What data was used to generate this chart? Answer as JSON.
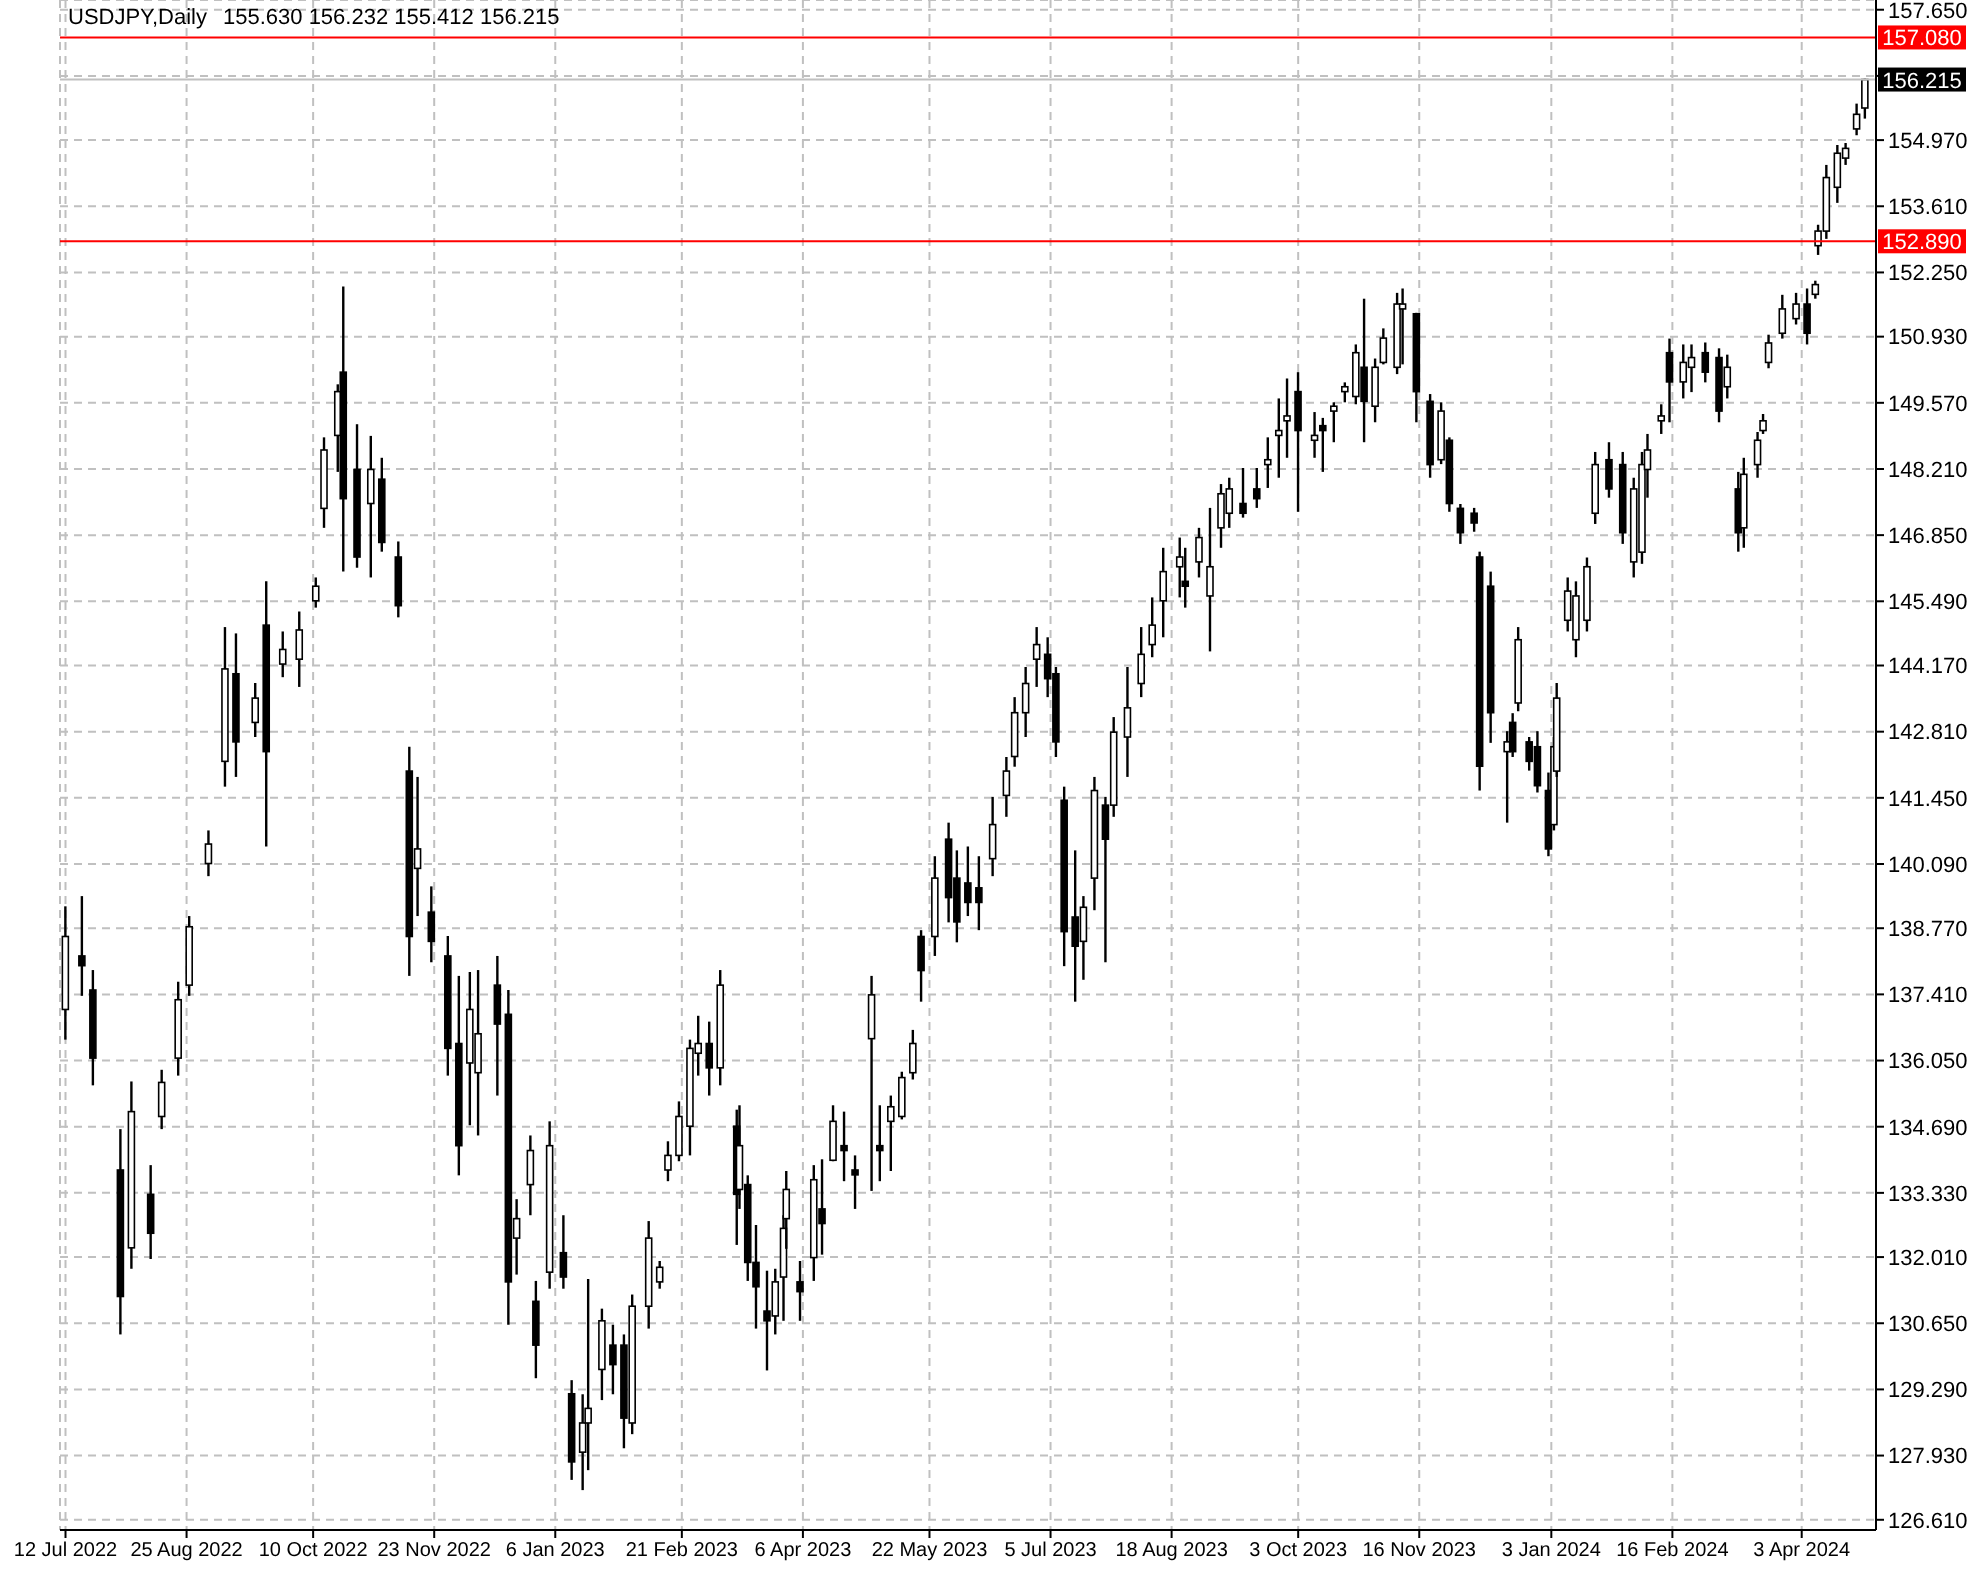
{
  "chart_data": {
    "type": "candlestick",
    "title": "USDJPY,Daily",
    "subtitle": "155.630 156.232 155.412 156.215",
    "color": "#000000",
    "grid": true,
    "xlim": [
      "2022-07-10",
      "2024-04-30"
    ],
    "xticks": [
      {
        "value": "2022-07-12",
        "label": "12 Jul 2022"
      },
      {
        "value": "2022-08-25",
        "label": "25 Aug 2022"
      },
      {
        "value": "2022-10-10",
        "label": "10 Oct 2022"
      },
      {
        "value": "2022-11-23",
        "label": "23 Nov 2022"
      },
      {
        "value": "2023-01-06",
        "label": "6 Jan 2023"
      },
      {
        "value": "2023-02-21",
        "label": "21 Feb 2023"
      },
      {
        "value": "2023-04-06",
        "label": "6 Apr 2023"
      },
      {
        "value": "2023-05-22",
        "label": "22 May 2023"
      },
      {
        "value": "2023-07-05",
        "label": "5 Jul 2023"
      },
      {
        "value": "2023-08-18",
        "label": "18 Aug 2023"
      },
      {
        "value": "2023-10-03",
        "label": "3 Oct 2023"
      },
      {
        "value": "2023-11-16",
        "label": "16 Nov 2023"
      },
      {
        "value": "2024-01-03",
        "label": "3 Jan 2024"
      },
      {
        "value": "2024-02-16",
        "label": "16 Feb 2024"
      },
      {
        "value": "2024-04-03",
        "label": "3 Apr 2024"
      }
    ],
    "ylim": [
      126.4,
      157.85
    ],
    "yticks": [
      {
        "value": 126.61,
        "label": "126.610"
      },
      {
        "value": 127.93,
        "label": "127.930"
      },
      {
        "value": 129.29,
        "label": "129.290"
      },
      {
        "value": 130.65,
        "label": "130.650"
      },
      {
        "value": 132.01,
        "label": "132.010"
      },
      {
        "value": 133.33,
        "label": "133.330"
      },
      {
        "value": 134.69,
        "label": "134.690"
      },
      {
        "value": 136.05,
        "label": "136.050"
      },
      {
        "value": 137.41,
        "label": "137.410"
      },
      {
        "value": 138.77,
        "label": "138.770"
      },
      {
        "value": 140.09,
        "label": "140.090"
      },
      {
        "value": 141.45,
        "label": "141.450"
      },
      {
        "value": 142.81,
        "label": "142.810"
      },
      {
        "value": 144.17,
        "label": "144.170"
      },
      {
        "value": 145.49,
        "label": "145.490"
      },
      {
        "value": 146.85,
        "label": "146.850"
      },
      {
        "value": 148.21,
        "label": "148.210"
      },
      {
        "value": 149.57,
        "label": "149.570"
      },
      {
        "value": 150.93,
        "label": "150.930"
      },
      {
        "value": 152.25,
        "label": "152.250"
      },
      {
        "value": 153.61,
        "label": "153.610"
      },
      {
        "value": 154.97,
        "label": "154.970"
      },
      {
        "value": 156.29,
        "label": null
      },
      {
        "value": 157.65,
        "label": "157.650"
      }
    ],
    "ref_lines": [
      {
        "axis": "y",
        "value": 157.08,
        "label": "157.080",
        "color": "#ff0000"
      },
      {
        "axis": "y",
        "value": 152.89,
        "label": "152.890",
        "color": "#ff0000"
      },
      {
        "axis": "y",
        "value": 156.215,
        "label": "156.215",
        "color": "#c0c0c0"
      }
    ],
    "x": [
      "2022-07-12",
      "2022-07-18",
      "2022-07-22",
      "2022-08-01",
      "2022-08-05",
      "2022-08-12",
      "2022-08-16",
      "2022-08-22",
      "2022-08-26",
      "2022-09-02",
      "2022-09-08",
      "2022-09-12",
      "2022-09-19",
      "2022-09-23",
      "2022-09-29",
      "2022-10-05",
      "2022-10-11",
      "2022-10-14",
      "2022-10-19",
      "2022-10-21",
      "2022-10-26",
      "2022-10-31",
      "2022-11-04",
      "2022-11-10",
      "2022-11-14",
      "2022-11-17",
      "2022-11-22",
      "2022-11-28",
      "2022-12-02",
      "2022-12-06",
      "2022-12-09",
      "2022-12-16",
      "2022-12-20",
      "2022-12-23",
      "2022-12-28",
      "2022-12-30",
      "2023-01-04",
      "2023-01-09",
      "2023-01-12",
      "2023-01-16",
      "2023-01-18",
      "2023-01-23",
      "2023-01-27",
      "2023-01-31",
      "2023-02-03",
      "2023-02-09",
      "2023-02-13",
      "2023-02-16",
      "2023-02-20",
      "2023-02-24",
      "2023-02-27",
      "2023-03-03",
      "2023-03-07",
      "2023-03-13",
      "2023-03-14",
      "2023-03-17",
      "2023-03-20",
      "2023-03-24",
      "2023-03-27",
      "2023-03-30",
      "2023-03-31",
      "2023-04-05",
      "2023-04-10",
      "2023-04-13",
      "2023-04-17",
      "2023-04-21",
      "2023-04-25",
      "2023-05-01",
      "2023-05-04",
      "2023-05-08",
      "2023-05-12",
      "2023-05-16",
      "2023-05-19",
      "2023-05-24",
      "2023-05-29",
      "2023-06-01",
      "2023-06-05",
      "2023-06-09",
      "2023-06-14",
      "2023-06-19",
      "2023-06-22",
      "2023-06-26",
      "2023-06-30",
      "2023-07-04",
      "2023-07-07",
      "2023-07-10",
      "2023-07-14",
      "2023-07-17",
      "2023-07-21",
      "2023-07-25",
      "2023-07-28",
      "2023-08-02",
      "2023-08-07",
      "2023-08-11",
      "2023-08-15",
      "2023-08-21",
      "2023-08-23",
      "2023-08-28",
      "2023-09-01",
      "2023-09-05",
      "2023-09-08",
      "2023-09-13",
      "2023-09-18",
      "2023-09-22",
      "2023-09-26",
      "2023-09-29",
      "2023-10-03",
      "2023-10-09",
      "2023-10-12",
      "2023-10-16",
      "2023-10-20",
      "2023-10-24",
      "2023-10-27",
      "2023-10-31",
      "2023-11-03",
      "2023-11-08",
      "2023-11-10",
      "2023-11-15",
      "2023-11-20",
      "2023-11-24",
      "2023-11-27",
      "2023-12-01",
      "2023-12-06",
      "2023-12-08",
      "2023-12-12",
      "2023-12-18",
      "2023-12-20",
      "2023-12-22",
      "2023-12-26",
      "2023-12-29",
      "2024-01-02",
      "2024-01-04",
      "2024-01-05",
      "2024-01-09",
      "2024-01-12",
      "2024-01-16",
      "2024-01-19",
      "2024-01-24",
      "2024-01-29",
      "2024-02-02",
      "2024-02-05",
      "2024-02-07",
      "2024-02-12",
      "2024-02-15",
      "2024-02-20",
      "2024-02-23",
      "2024-02-28",
      "2024-03-04",
      "2024-03-07",
      "2024-03-11",
      "2024-03-13",
      "2024-03-18",
      "2024-03-20",
      "2024-03-22",
      "2024-03-27",
      "2024-04-01",
      "2024-04-05",
      "2024-04-08",
      "2024-04-09",
      "2024-04-12",
      "2024-04-16",
      "2024-04-19",
      "2024-04-23",
      "2024-04-26"
    ],
    "ohlc": [
      [
        137.1,
        139.22,
        136.48,
        138.6
      ],
      [
        138.2,
        139.43,
        137.38,
        138.0
      ],
      [
        137.5,
        137.91,
        135.54,
        136.1
      ],
      [
        133.8,
        134.64,
        130.42,
        131.2
      ],
      [
        132.2,
        135.62,
        131.77,
        135.0
      ],
      [
        133.3,
        133.9,
        131.97,
        132.5
      ],
      [
        134.9,
        135.86,
        134.64,
        135.6
      ],
      [
        136.1,
        137.67,
        135.74,
        137.3
      ],
      [
        137.6,
        139.02,
        137.38,
        138.8
      ],
      [
        140.1,
        140.78,
        139.84,
        140.5
      ],
      [
        142.2,
        144.96,
        141.68,
        144.1
      ],
      [
        144.0,
        144.83,
        141.88,
        142.6
      ],
      [
        143.0,
        143.81,
        142.7,
        143.5
      ],
      [
        145.0,
        145.9,
        140.45,
        142.4
      ],
      [
        144.2,
        144.87,
        143.93,
        144.5
      ],
      [
        144.3,
        145.28,
        143.73,
        144.9
      ],
      [
        145.5,
        145.98,
        145.36,
        145.8
      ],
      [
        147.4,
        148.86,
        147.0,
        148.6
      ],
      [
        148.9,
        149.95,
        148.15,
        149.8
      ],
      [
        150.2,
        151.96,
        146.1,
        147.6
      ],
      [
        148.2,
        149.13,
        146.18,
        146.4
      ],
      [
        147.5,
        148.89,
        145.98,
        148.2
      ],
      [
        148.0,
        148.44,
        146.51,
        146.7
      ],
      [
        146.4,
        146.72,
        145.16,
        145.4
      ],
      [
        142.0,
        142.5,
        137.79,
        138.6
      ],
      [
        140.0,
        141.88,
        139.02,
        140.4
      ],
      [
        139.1,
        139.63,
        138.07,
        138.5
      ],
      [
        138.2,
        138.61,
        135.74,
        136.3
      ],
      [
        136.4,
        137.79,
        133.69,
        134.3
      ],
      [
        136.0,
        137.87,
        134.72,
        137.1
      ],
      [
        135.8,
        137.91,
        134.51,
        136.6
      ],
      [
        137.6,
        138.2,
        135.33,
        136.8
      ],
      [
        137.0,
        137.5,
        130.62,
        131.5
      ],
      [
        132.4,
        133.2,
        131.65,
        132.8
      ],
      [
        133.5,
        134.51,
        132.87,
        134.2
      ],
      [
        131.1,
        131.52,
        129.52,
        130.2
      ],
      [
        131.7,
        134.8,
        131.36,
        134.3
      ],
      [
        132.1,
        132.87,
        131.36,
        131.6
      ],
      [
        129.2,
        129.48,
        127.43,
        127.8
      ],
      [
        128.0,
        129.19,
        127.22,
        128.6
      ],
      [
        128.6,
        131.56,
        127.63,
        128.9
      ],
      [
        129.7,
        130.95,
        129.07,
        130.7
      ],
      [
        130.2,
        130.62,
        129.19,
        129.8
      ],
      [
        130.2,
        130.42,
        128.08,
        128.7
      ],
      [
        128.6,
        131.24,
        128.37,
        131.0
      ],
      [
        131.0,
        132.75,
        130.54,
        132.4
      ],
      [
        131.5,
        131.93,
        131.36,
        131.8
      ],
      [
        133.8,
        134.39,
        133.57,
        134.1
      ],
      [
        134.1,
        135.21,
        133.98,
        134.9
      ],
      [
        134.7,
        136.48,
        134.1,
        136.3
      ],
      [
        136.2,
        136.97,
        135.74,
        136.4
      ],
      [
        136.4,
        136.85,
        135.33,
        135.9
      ],
      [
        135.9,
        137.91,
        135.54,
        137.6
      ],
      [
        134.7,
        135.04,
        132.26,
        133.3
      ],
      [
        133.4,
        135.13,
        133.0,
        134.3
      ],
      [
        133.5,
        133.69,
        131.52,
        131.9
      ],
      [
        131.9,
        132.67,
        130.54,
        131.4
      ],
      [
        130.9,
        131.73,
        129.68,
        130.7
      ],
      [
        130.8,
        131.77,
        130.42,
        131.5
      ],
      [
        131.6,
        132.87,
        130.7,
        132.6
      ],
      [
        132.8,
        133.78,
        132.18,
        133.4
      ],
      [
        131.5,
        131.93,
        130.7,
        131.3
      ],
      [
        132.0,
        133.9,
        131.52,
        133.6
      ],
      [
        133.0,
        134.02,
        132.06,
        132.7
      ],
      [
        134.0,
        135.13,
        133.98,
        134.8
      ],
      [
        134.3,
        135.0,
        133.57,
        134.2
      ],
      [
        133.8,
        134.1,
        133.0,
        133.7
      ],
      [
        136.5,
        137.79,
        133.37,
        137.4
      ],
      [
        134.3,
        135.13,
        133.57,
        134.2
      ],
      [
        134.8,
        135.33,
        133.78,
        135.1
      ],
      [
        134.9,
        135.82,
        134.84,
        135.7
      ],
      [
        135.8,
        136.68,
        135.66,
        136.4
      ],
      [
        138.6,
        138.73,
        137.26,
        137.9
      ],
      [
        138.6,
        140.25,
        138.2,
        139.8
      ],
      [
        140.6,
        140.94,
        138.89,
        139.4
      ],
      [
        139.8,
        140.37,
        138.48,
        138.9
      ],
      [
        139.7,
        140.45,
        139.02,
        139.3
      ],
      [
        139.6,
        140.25,
        138.73,
        139.3
      ],
      [
        140.2,
        141.47,
        139.84,
        140.9
      ],
      [
        141.5,
        142.29,
        141.06,
        142.0
      ],
      [
        142.3,
        143.52,
        142.09,
        143.2
      ],
      [
        143.2,
        144.14,
        142.7,
        143.8
      ],
      [
        144.3,
        144.96,
        143.73,
        144.6
      ],
      [
        144.4,
        144.75,
        143.52,
        143.9
      ],
      [
        144.0,
        144.14,
        142.29,
        142.6
      ],
      [
        141.4,
        141.68,
        137.99,
        138.7
      ],
      [
        139.0,
        140.37,
        137.26,
        138.4
      ],
      [
        138.5,
        139.43,
        137.71,
        139.2
      ],
      [
        139.8,
        141.88,
        139.14,
        141.6
      ],
      [
        141.3,
        141.47,
        138.07,
        140.6
      ],
      [
        141.3,
        143.11,
        141.06,
        142.8
      ],
      [
        142.7,
        144.14,
        141.88,
        143.3
      ],
      [
        143.8,
        144.96,
        143.52,
        144.4
      ],
      [
        144.6,
        145.57,
        144.34,
        145.0
      ],
      [
        145.5,
        146.59,
        144.75,
        146.1
      ],
      [
        146.2,
        146.8,
        145.57,
        146.4
      ],
      [
        145.9,
        146.59,
        145.36,
        145.8
      ],
      [
        146.3,
        147.0,
        145.98,
        146.8
      ],
      [
        145.6,
        147.41,
        144.46,
        146.2
      ],
      [
        147.0,
        147.9,
        146.59,
        147.7
      ],
      [
        147.3,
        148.03,
        147.0,
        147.8
      ],
      [
        147.5,
        148.23,
        147.21,
        147.3
      ],
      [
        147.8,
        148.23,
        147.41,
        147.6
      ],
      [
        148.3,
        148.86,
        147.82,
        148.4
      ],
      [
        148.9,
        149.66,
        148.03,
        149.0
      ],
      [
        149.2,
        150.07,
        148.44,
        149.3
      ],
      [
        149.8,
        150.2,
        147.33,
        149.0
      ],
      [
        148.8,
        149.38,
        148.44,
        148.9
      ],
      [
        149.1,
        149.26,
        148.15,
        149.0
      ],
      [
        149.4,
        149.58,
        148.76,
        149.5
      ],
      [
        149.8,
        149.99,
        149.58,
        149.9
      ],
      [
        149.7,
        150.77,
        149.54,
        150.6
      ],
      [
        150.3,
        151.71,
        148.76,
        149.6
      ],
      [
        149.5,
        150.48,
        149.17,
        150.3
      ],
      [
        150.4,
        151.1,
        150.36,
        150.9
      ],
      [
        150.3,
        151.83,
        150.16,
        151.6
      ],
      [
        151.5,
        151.92,
        150.36,
        151.6
      ],
      [
        151.4,
        151.42,
        149.17,
        149.8
      ],
      [
        149.6,
        149.75,
        148.03,
        148.3
      ],
      [
        148.4,
        149.58,
        148.31,
        149.4
      ],
      [
        148.8,
        148.86,
        147.33,
        147.5
      ],
      [
        147.4,
        147.49,
        146.67,
        146.9
      ],
      [
        147.3,
        147.41,
        146.92,
        147.1
      ],
      [
        146.4,
        146.51,
        141.6,
        142.1
      ],
      [
        145.8,
        146.1,
        142.58,
        143.2
      ],
      [
        142.4,
        142.82,
        140.94,
        142.6
      ],
      [
        143.0,
        143.19,
        142.29,
        142.4
      ],
      [
        143.4,
        144.96,
        143.23,
        144.7
      ],
      [
        142.6,
        142.7,
        142.01,
        142.2
      ],
      [
        142.5,
        142.82,
        141.56,
        141.7
      ],
      [
        141.6,
        141.97,
        140.25,
        140.4
      ],
      [
        140.9,
        142.7,
        140.78,
        142.5
      ],
      [
        142.0,
        143.81,
        141.88,
        143.5
      ],
      [
        145.1,
        145.98,
        144.87,
        145.7
      ],
      [
        144.7,
        145.9,
        144.34,
        145.6
      ],
      [
        145.1,
        146.39,
        144.87,
        146.2
      ],
      [
        147.3,
        148.56,
        147.08,
        148.3
      ],
      [
        148.4,
        148.76,
        147.62,
        147.8
      ],
      [
        148.3,
        148.56,
        146.67,
        146.9
      ],
      [
        146.3,
        148.03,
        145.98,
        147.8
      ],
      [
        146.5,
        148.56,
        146.26,
        148.3
      ],
      [
        148.2,
        148.93,
        147.62,
        148.6
      ],
      [
        149.2,
        149.54,
        148.93,
        149.3
      ],
      [
        150.6,
        150.89,
        149.17,
        150.0
      ],
      [
        150.0,
        150.77,
        149.66,
        150.4
      ],
      [
        150.3,
        150.77,
        149.79,
        150.5
      ],
      [
        150.6,
        150.81,
        149.99,
        150.2
      ],
      [
        150.5,
        150.69,
        149.17,
        149.4
      ],
      [
        149.9,
        150.56,
        149.66,
        150.3
      ],
      [
        147.8,
        148.15,
        146.51,
        146.9
      ],
      [
        147.0,
        148.44,
        146.59,
        148.1
      ],
      [
        148.3,
        148.97,
        148.03,
        148.8
      ],
      [
        149.0,
        149.34,
        148.93,
        149.2
      ],
      [
        150.4,
        150.97,
        150.28,
        150.8
      ],
      [
        151.0,
        151.79,
        150.89,
        151.5
      ],
      [
        151.3,
        151.83,
        151.18,
        151.6
      ],
      [
        151.6,
        151.92,
        150.77,
        151.0
      ],
      [
        151.8,
        152.08,
        151.71,
        152.0
      ],
      [
        152.8,
        153.23,
        152.61,
        153.1
      ],
      [
        153.1,
        154.46,
        152.94,
        154.2
      ],
      [
        154.0,
        154.87,
        153.68,
        154.7
      ],
      [
        154.6,
        154.91,
        154.46,
        154.8
      ],
      [
        155.2,
        155.72,
        155.07,
        155.5
      ],
      [
        155.63,
        156.232,
        155.412,
        156.215
      ]
    ]
  }
}
